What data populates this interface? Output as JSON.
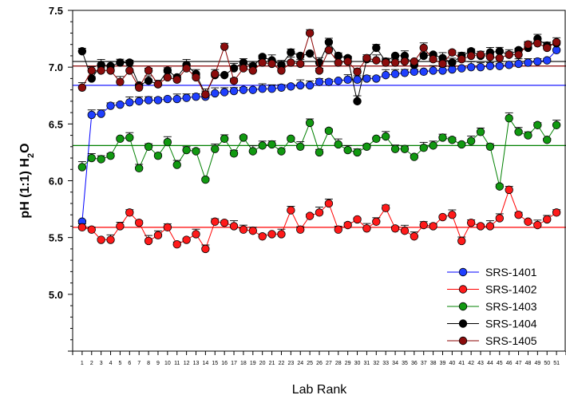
{
  "chart_data": {
    "type": "scatter",
    "title": "",
    "xlabel": "Lab Rank",
    "ylabel": {
      "main": "pH (1:1) H",
      "sub": "2",
      "tail": "O"
    },
    "xlim": [
      0,
      52
    ],
    "ylim": [
      4.5,
      7.5
    ],
    "yticks": [
      "5.0",
      "5.5",
      "6.0",
      "6.5",
      "7.0",
      "7.5"
    ],
    "xticks": [
      "1",
      "2",
      "3",
      "4",
      "5",
      "6",
      "7",
      "8",
      "9",
      "10",
      "11",
      "12",
      "13",
      "14",
      "15",
      "16",
      "17",
      "18",
      "19",
      "20",
      "21",
      "22",
      "23",
      "24",
      "25",
      "26",
      "27",
      "28",
      "29",
      "30",
      "31",
      "32",
      "33",
      "34",
      "35",
      "36",
      "37",
      "38",
      "39",
      "40",
      "41",
      "42",
      "43",
      "44",
      "45",
      "46",
      "47",
      "48",
      "49",
      "50",
      "51"
    ],
    "legend_position": "bottom-right",
    "series": [
      {
        "name": "SRS-1401",
        "color": "#0000ff",
        "fill": "#1f3fff",
        "reference": 6.84,
        "values": [
          5.64,
          6.58,
          6.59,
          6.66,
          6.67,
          6.69,
          6.7,
          6.71,
          6.71,
          6.72,
          6.72,
          6.73,
          6.74,
          6.74,
          6.77,
          6.78,
          6.79,
          6.8,
          6.8,
          6.81,
          6.81,
          6.82,
          6.83,
          6.84,
          6.84,
          6.87,
          6.87,
          6.88,
          6.89,
          6.89,
          6.9,
          6.9,
          6.93,
          6.94,
          6.95,
          6.96,
          6.96,
          6.97,
          6.97,
          6.98,
          6.99,
          7.0,
          7.0,
          7.01,
          7.01,
          7.02,
          7.03,
          7.04,
          7.05,
          7.06,
          7.15
        ]
      },
      {
        "name": "SRS-1402",
        "color": "#ff0000",
        "fill": "#ff1a1a",
        "reference": 5.59,
        "values": [
          5.59,
          5.57,
          5.48,
          5.48,
          5.6,
          5.72,
          5.63,
          5.47,
          5.52,
          5.59,
          5.44,
          5.48,
          5.53,
          5.4,
          5.64,
          5.63,
          5.6,
          5.57,
          5.56,
          5.51,
          5.53,
          5.53,
          5.74,
          5.57,
          5.69,
          5.72,
          5.8,
          5.57,
          5.61,
          5.66,
          5.58,
          5.64,
          5.76,
          5.58,
          5.56,
          5.51,
          5.61,
          5.6,
          5.68,
          5.7,
          5.47,
          5.63,
          5.6,
          5.6,
          5.67,
          5.92,
          5.7,
          5.64,
          5.61,
          5.66,
          5.72
        ]
      },
      {
        "name": "SRS-1403",
        "color": "#008000",
        "fill": "#119911",
        "reference": 6.31,
        "values": [
          6.12,
          6.2,
          6.19,
          6.22,
          6.37,
          6.38,
          6.11,
          6.3,
          6.22,
          6.34,
          6.14,
          6.27,
          6.26,
          6.01,
          6.28,
          6.37,
          6.24,
          6.38,
          6.26,
          6.31,
          6.32,
          6.26,
          6.37,
          6.3,
          6.51,
          6.25,
          6.44,
          6.32,
          6.27,
          6.25,
          6.3,
          6.37,
          6.39,
          6.28,
          6.28,
          6.21,
          6.29,
          6.31,
          6.38,
          6.36,
          6.32,
          6.35,
          6.43,
          6.3,
          5.95,
          6.55,
          6.43,
          6.4,
          6.49,
          6.36,
          6.49
        ]
      },
      {
        "name": "SRS-1404",
        "color": "#000000",
        "fill": "#000000",
        "reference": 7.05,
        "values": [
          7.14,
          6.9,
          7.02,
          7.01,
          7.04,
          7.04,
          6.84,
          6.88,
          6.85,
          6.97,
          6.91,
          7.02,
          6.94,
          6.76,
          6.93,
          6.93,
          6.99,
          7.04,
          7.01,
          7.09,
          7.06,
          7.02,
          7.13,
          7.1,
          7.12,
          7.04,
          7.22,
          7.1,
          7.08,
          6.7,
          7.07,
          7.17,
          7.05,
          7.1,
          7.1,
          7.02,
          7.1,
          7.11,
          7.08,
          7.04,
          7.1,
          7.14,
          7.1,
          7.13,
          7.14,
          7.11,
          7.15,
          7.17,
          7.25,
          7.19,
          7.21
        ]
      },
      {
        "name": "SRS-1405",
        "color": "#8b0000",
        "fill": "#8b0c0c",
        "reference": 7.01,
        "values": [
          6.82,
          6.97,
          6.97,
          6.97,
          6.87,
          6.97,
          6.82,
          6.97,
          6.85,
          6.91,
          6.89,
          6.99,
          6.91,
          6.76,
          6.94,
          7.18,
          6.88,
          6.99,
          6.97,
          7.04,
          7.03,
          6.97,
          7.04,
          7.03,
          7.3,
          6.97,
          7.15,
          7.04,
          7.05,
          6.96,
          7.08,
          7.06,
          7.04,
          7.04,
          7.05,
          7.05,
          7.17,
          7.07,
          7.03,
          7.13,
          7.07,
          7.1,
          7.11,
          7.09,
          7.08,
          7.11,
          7.11,
          7.2,
          7.21,
          7.17,
          7.22
        ]
      }
    ]
  }
}
